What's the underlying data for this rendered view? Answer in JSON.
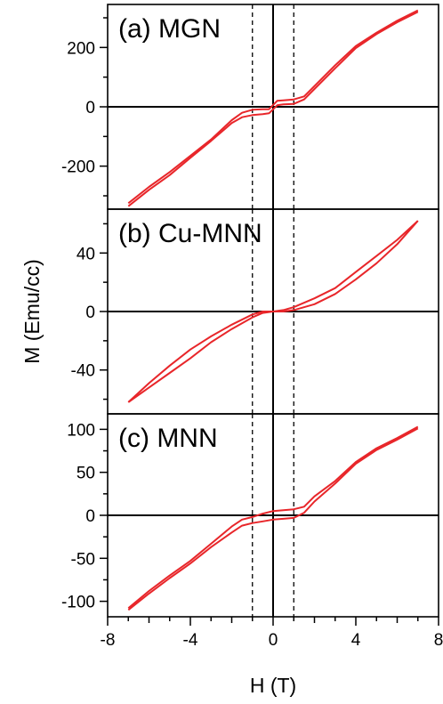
{
  "chart_data": {
    "type": "line",
    "xlabel": "H (T)",
    "ylabel": "M (Emu/cc)",
    "xlim": [
      -8,
      8
    ],
    "x_ticks": [
      -8,
      -4,
      0,
      4,
      8
    ],
    "x_tick_labels": [
      "-8",
      "-4",
      "0",
      "4",
      "8"
    ],
    "dashed_lines_x": [
      -1,
      1
    ],
    "series_color": "#e8262a",
    "panels": [
      {
        "label": "(a) MGN",
        "ylim": [
          -345,
          345
        ],
        "y_ticks": [
          -200,
          0,
          200
        ],
        "y_tick_labels": [
          "-200",
          "0",
          "200"
        ],
        "branches": [
          {
            "x": [
              -7,
              -6,
              -5,
              -4,
              -3,
              -2,
              -1.5,
              -1,
              -0.5,
              -0.2,
              0.2,
              0.5,
              1,
              1.5,
              2,
              3,
              4,
              5,
              6,
              7
            ],
            "y": [
              -325,
              -270,
              -220,
              -165,
              -110,
              -45,
              -20,
              -10,
              -8,
              -8,
              20,
              22,
              25,
              35,
              70,
              140,
              205,
              250,
              290,
              325
            ]
          },
          {
            "x": [
              -7,
              -6,
              -5,
              -4,
              -3,
              -2,
              -1.5,
              -1,
              -0.5,
              -0.2,
              0.2,
              0.5,
              1,
              1.5,
              2,
              3,
              4,
              5,
              6,
              7
            ],
            "y": [
              -335,
              -280,
              -230,
              -172,
              -115,
              -55,
              -35,
              -28,
              -25,
              -22,
              5,
              8,
              10,
              25,
              60,
              130,
              198,
              245,
              285,
              320
            ]
          }
        ]
      },
      {
        "label": "(b) Cu-MNN",
        "ylim": [
          -70,
          70
        ],
        "y_ticks": [
          -40,
          0,
          40
        ],
        "y_tick_labels": [
          "-40",
          "0",
          "40"
        ],
        "branches": [
          {
            "x": [
              -7,
              -6,
              -5,
              -4,
              -3,
              -2,
              -1,
              -0.5,
              0,
              0.5,
              1,
              2,
              3,
              4,
              5,
              6,
              7
            ],
            "y": [
              -62,
              -52,
              -42,
              -32,
              -21,
              -12,
              -4,
              -1,
              0,
              1,
              3,
              9,
              16,
              27,
              38,
              49,
              62
            ]
          },
          {
            "x": [
              -7,
              -6,
              -5,
              -4,
              -3,
              -2,
              -1,
              -0.5,
              0,
              0.5,
              1,
              2,
              3,
              4,
              5,
              6,
              7
            ],
            "y": [
              -62,
              -49,
              -37,
              -26,
              -17,
              -9,
              -2,
              0,
              0,
              0,
              1,
              5,
              12,
              22,
              33,
              46,
              62
            ]
          }
        ]
      },
      {
        "label": "(c) MNN",
        "ylim": [
          -118,
          118
        ],
        "y_ticks": [
          -100,
          -50,
          0,
          50,
          100
        ],
        "y_tick_labels": [
          "-100",
          "-50",
          "0",
          "50",
          "100"
        ],
        "branches": [
          {
            "x": [
              -7,
              -6,
              -5,
              -4,
              -3,
              -2,
              -1.5,
              -1,
              -0.5,
              0,
              0.5,
              1,
              1.5,
              2,
              3,
              4,
              5,
              6,
              7
            ],
            "y": [
              -108,
              -88,
              -70,
              -53,
              -33,
              -13,
              -5,
              -2,
              2,
              5,
              6,
              7,
              10,
              22,
              40,
              62,
              78,
              90,
              103
            ]
          },
          {
            "x": [
              -7,
              -6,
              -5,
              -4,
              -3,
              -2,
              -1.5,
              -1,
              -0.5,
              0,
              0.5,
              1,
              1.5,
              2,
              3,
              4,
              5,
              6,
              7
            ],
            "y": [
              -110,
              -91,
              -73,
              -56,
              -37,
              -20,
              -12,
              -9,
              -7,
              -5,
              -4,
              -3,
              3,
              16,
              37,
              60,
              76,
              88,
              101
            ]
          }
        ]
      }
    ]
  }
}
